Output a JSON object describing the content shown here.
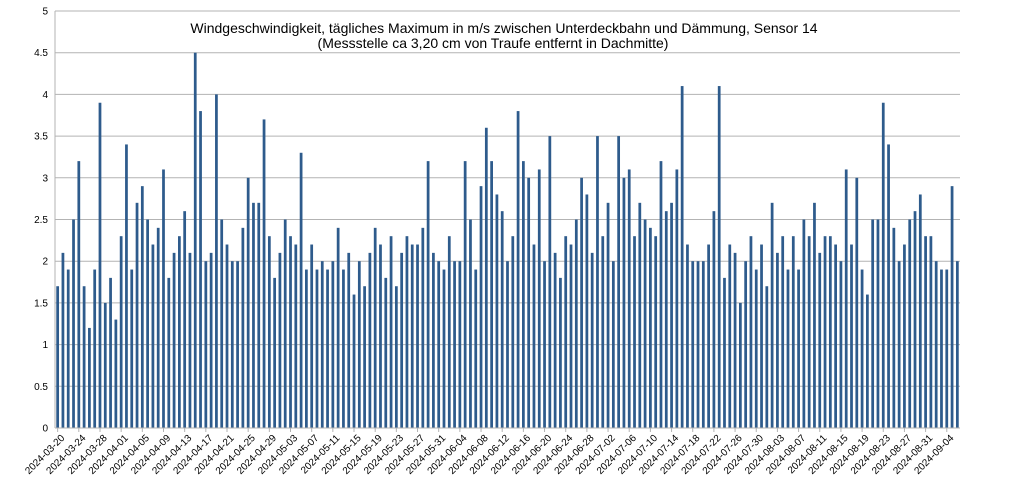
{
  "chart_data": {
    "type": "bar",
    "title": "Windgeschwindigkeit, tägliches Maximum in m/s zwischen Unterdeckbahn und Dämmung, Sensor 14",
    "subtitle": "(Messstelle ca 3,20 cm von Traufe entfernt in Dachmitte)",
    "xlabel": "",
    "ylabel": "",
    "ylim": [
      0,
      5
    ],
    "yticks": [
      "0",
      "0.5",
      "1",
      "1.5",
      "2",
      "2.5",
      "3",
      "3.5",
      "4",
      "4.5",
      "5"
    ],
    "grid": true,
    "legend": "none",
    "bar_color": "#2e5b8c",
    "start_date": "2024-03-20",
    "xtick_labels": [
      "2024-03-20",
      "2024-03-24",
      "2024-03-28",
      "2024-04-01",
      "2024-04-05",
      "2024-04-09",
      "2024-04-13",
      "2024-04-17",
      "2024-04-21",
      "2024-04-25",
      "2024-04-29",
      "2024-05-03",
      "2024-05-07",
      "2024-05-11",
      "2024-05-15",
      "2024-05-19",
      "2024-05-23",
      "2024-05-27",
      "2024-05-31",
      "2024-06-04",
      "2024-06-08",
      "2024-06-12",
      "2024-06-16",
      "2024-06-20",
      "2024-06-24",
      "2024-06-28",
      "2024-07-02",
      "2024-07-06",
      "2024-07-10",
      "2024-07-14",
      "2024-07-18",
      "2024-07-22",
      "2024-07-26",
      "2024-07-30",
      "2024-08-03",
      "2024-08-07",
      "2024-08-11",
      "2024-08-15",
      "2024-08-19",
      "2024-08-23",
      "2024-08-27",
      "2024-08-31",
      "2024-09-04"
    ],
    "values": [
      1.7,
      2.1,
      1.9,
      2.5,
      3.2,
      1.7,
      1.2,
      1.9,
      3.9,
      1.5,
      1.8,
      1.3,
      2.3,
      3.4,
      1.9,
      2.7,
      2.9,
      2.5,
      2.2,
      2.4,
      3.1,
      1.8,
      2.1,
      2.3,
      2.6,
      2.1,
      4.5,
      3.8,
      2.0,
      2.1,
      4.0,
      2.5,
      2.2,
      2.0,
      2.0,
      2.4,
      3.0,
      2.7,
      2.7,
      3.7,
      2.3,
      1.8,
      2.1,
      2.5,
      2.3,
      2.2,
      3.3,
      1.9,
      2.2,
      1.9,
      2.0,
      1.9,
      2.0,
      2.4,
      1.9,
      2.1,
      1.6,
      2.0,
      1.7,
      2.1,
      2.4,
      2.2,
      1.8,
      2.3,
      1.7,
      2.1,
      2.3,
      2.2,
      2.2,
      2.4,
      3.2,
      2.1,
      2.0,
      1.9,
      2.3,
      2.0,
      2.0,
      3.2,
      2.5,
      1.9,
      2.9,
      3.6,
      3.2,
      2.8,
      2.6,
      2.0,
      2.3,
      3.8,
      3.2,
      3.0,
      2.2,
      3.1,
      2.0,
      3.5,
      2.1,
      1.8,
      2.3,
      2.2,
      2.5,
      3.0,
      2.8,
      2.1,
      3.5,
      2.3,
      2.7,
      2.0,
      3.5,
      3.0,
      3.1,
      2.3,
      2.7,
      2.5,
      2.4,
      2.3,
      3.2,
      2.6,
      2.7,
      3.1,
      4.1,
      2.2,
      2.0,
      2.0,
      2.0,
      2.2,
      2.6,
      4.1,
      1.8,
      2.2,
      2.1,
      1.5,
      2.0,
      2.3,
      1.9,
      2.2,
      1.7,
      2.7,
      2.1,
      2.3,
      1.9,
      2.3,
      1.9,
      2.5,
      2.3,
      2.7,
      2.1,
      2.3,
      2.3,
      2.2,
      2.0,
      3.1,
      2.2,
      3.0,
      1.9,
      1.6,
      2.5,
      2.5,
      3.9,
      3.4,
      2.4,
      2.0,
      2.2,
      2.5,
      2.6,
      2.8,
      2.3,
      2.3,
      2.0,
      1.9,
      1.9,
      2.9,
      2.0
    ]
  }
}
